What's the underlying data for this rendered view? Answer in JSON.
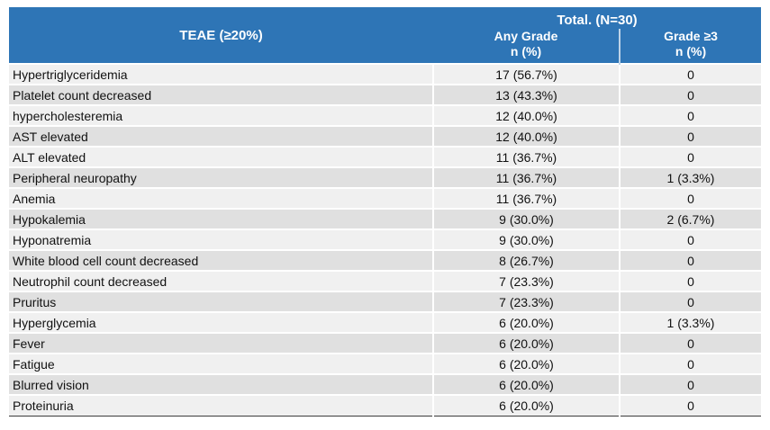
{
  "page": {
    "background": "#ffffff"
  },
  "colors": {
    "header_bg": "#2E75B6",
    "header_text": "#FFFFFF",
    "header_divider": "#BDD3E8",
    "row_odd_bg": "#F0F0F0",
    "row_even_bg": "#E0E0E0",
    "cell_gap": "#FFFFFF",
    "bottom_border": "#3C3C3C",
    "body_text": "#111111"
  },
  "chart_data": {
    "type": "table",
    "header": {
      "teae_label": "TEAE (≥20%)",
      "total_label": "Total. (N=30)",
      "any_grade_label": "Any Grade",
      "any_grade_sub": "n (%)",
      "grade3_label": "Grade ≥3",
      "grade3_sub": "n (%)"
    },
    "columns": [
      "TEAE (≥20%)",
      "Any Grade n (%)",
      "Grade ≥3 n (%)"
    ],
    "group_header": "Total. (N=30)",
    "rows": [
      {
        "teae": "Hypertriglyceridemia",
        "any_grade": "17 (56.7%)",
        "grade_ge3": "0"
      },
      {
        "teae": "Platelet count decreased",
        "any_grade": "13 (43.3%)",
        "grade_ge3": "0"
      },
      {
        "teae": "hypercholesteremia",
        "any_grade": "12 (40.0%)",
        "grade_ge3": "0"
      },
      {
        "teae": "AST elevated",
        "any_grade": "12 (40.0%)",
        "grade_ge3": "0"
      },
      {
        "teae": "ALT elevated",
        "any_grade": "11 (36.7%)",
        "grade_ge3": "0"
      },
      {
        "teae": "Peripheral neuropathy",
        "any_grade": "11 (36.7%)",
        "grade_ge3": "1 (3.3%)"
      },
      {
        "teae": "Anemia",
        "any_grade": "11 (36.7%)",
        "grade_ge3": "0"
      },
      {
        "teae": "Hypokalemia",
        "any_grade": "9 (30.0%)",
        "grade_ge3": "2 (6.7%)"
      },
      {
        "teae": "Hyponatremia",
        "any_grade": "9 (30.0%)",
        "grade_ge3": "0"
      },
      {
        "teae": "White blood cell count decreased",
        "any_grade": "8 (26.7%)",
        "grade_ge3": "0"
      },
      {
        "teae": "Neutrophil count decreased",
        "any_grade": "7 (23.3%)",
        "grade_ge3": "0"
      },
      {
        "teae": "Pruritus",
        "any_grade": "7 (23.3%)",
        "grade_ge3": "0"
      },
      {
        "teae": "Hyperglycemia",
        "any_grade": "6 (20.0%)",
        "grade_ge3": "1 (3.3%)"
      },
      {
        "teae": "Fever",
        "any_grade": "6 (20.0%)",
        "grade_ge3": "0"
      },
      {
        "teae": "Fatigue",
        "any_grade": "6 (20.0%)",
        "grade_ge3": "0"
      },
      {
        "teae": "Blurred vision",
        "any_grade": "6 (20.0%)",
        "grade_ge3": "0"
      },
      {
        "teae": "Proteinuria",
        "any_grade": "6 (20.0%)",
        "grade_ge3": "0"
      }
    ]
  }
}
